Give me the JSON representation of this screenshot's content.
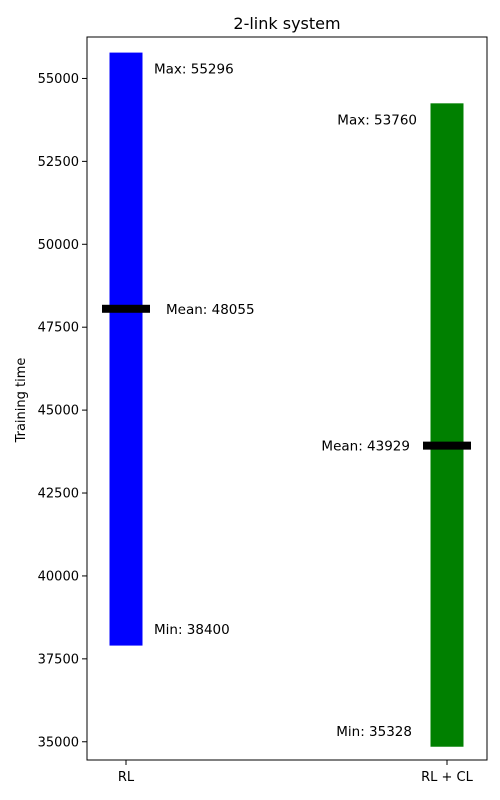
{
  "chart_data": {
    "type": "bar",
    "title": "2-link system",
    "xlabel": "",
    "ylabel": "Training time",
    "ylim": [
      34450,
      56250
    ],
    "yticks": [
      35000,
      37500,
      40000,
      42500,
      45000,
      47500,
      50000,
      52500,
      55000
    ],
    "ytick_labels": [
      "35000",
      "37500",
      "40000",
      "42500",
      "45000",
      "47500",
      "50000",
      "52500",
      "55000"
    ],
    "categories": [
      "RL",
      "RL + CL"
    ],
    "series": [
      {
        "color": "#0000ff",
        "bar_bottom": 37900,
        "bar_top": 55780,
        "max": 55296,
        "mean": 48055,
        "min": 38400,
        "max_label": "Max: 55296",
        "mean_label": "Mean: 48055",
        "min_label": "Min: 38400"
      },
      {
        "color": "#008000",
        "bar_bottom": 34850,
        "bar_top": 54250,
        "max": 53760,
        "mean": 43929,
        "min": 35328,
        "max_label": "Max: 53760",
        "mean_label": "Mean: 43929",
        "min_label": "Min: 35328"
      }
    ],
    "mean_marker_color": "#000000",
    "grid": false,
    "legend": "none"
  }
}
